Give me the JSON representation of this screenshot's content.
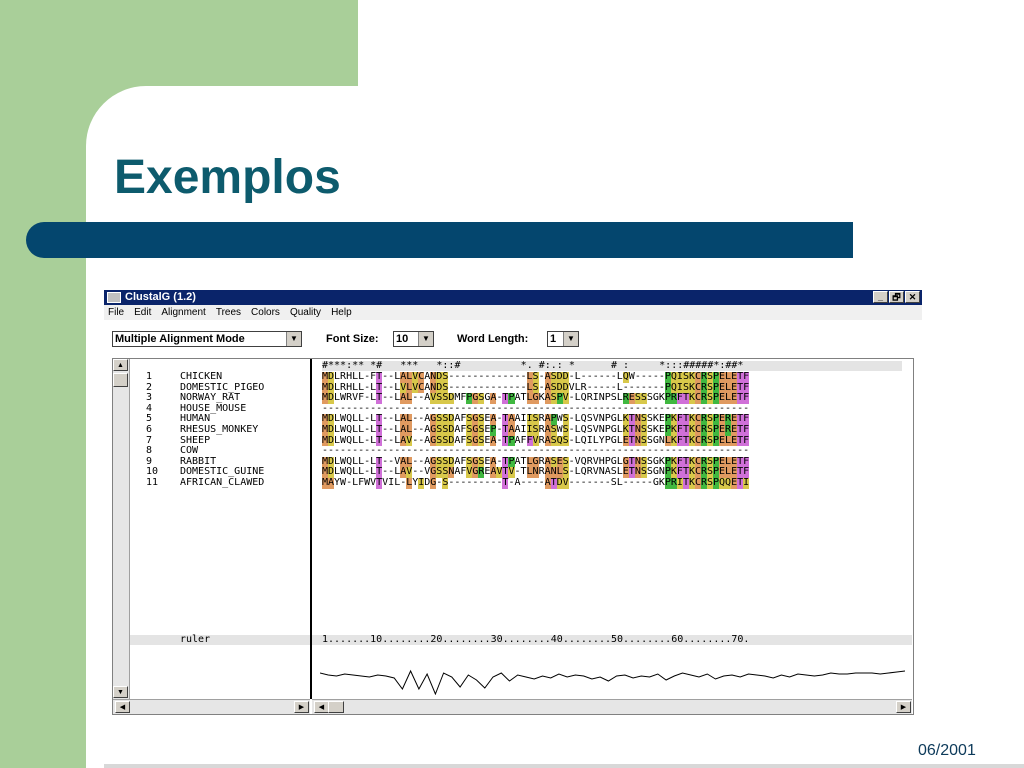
{
  "slide": {
    "title": "Exemplos",
    "footer": "06/2001",
    "colors": {
      "accent_green": "#a9cf99",
      "title_color": "#0d5b6d",
      "bar_color": "#04466e"
    }
  },
  "window": {
    "title": "ClustalG (1.2)",
    "controls": [
      "_",
      "🗗",
      "✕"
    ]
  },
  "menu": [
    "File",
    "Edit",
    "Alignment",
    "Trees",
    "Colors",
    "Quality",
    "Help"
  ],
  "toolbar": {
    "mode_value": "Multiple Alignment Mode",
    "font_size_label": "Font Size:",
    "font_size_value": "10",
    "word_length_label": "Word Length:",
    "word_length_value": "1"
  },
  "sequences": [
    {
      "num": "1",
      "name": "CHICKEN",
      "seq": "MDLRHLL-FT--LALVCANDS-------------LS-ASDD-L------LQW-----PQISKCRSPELETF"
    },
    {
      "num": "2",
      "name": "DOMESTIC_PIGEO",
      "seq": "MDLRHLL-LT--LVLVCANDS-------------LS-ASDDVLR-----L-------PQISKCRSPELETF"
    },
    {
      "num": "3",
      "name": "NORWAY_RAT",
      "seq": "MDLWRVF-LT--LAL--AVSSDMFPGSGA-TPATLGKASPV-LQRINPSLRESSSGKPRFTKCRSPELETF"
    },
    {
      "num": "4",
      "name": "HOUSE_MOUSE",
      "seq": "-----------------------------------------------------------------------"
    },
    {
      "num": "5",
      "name": "HUMAN",
      "seq": "MDLWQLL-LT--LAL--AGSSDAFSGSEA-TAAIISRAPWS-LQSVNPGLKTNSSKEPKFTKCRSPERETF"
    },
    {
      "num": "6",
      "name": "RHESUS_MONKEY",
      "seq": "MDLWQLL-LT--LAL--AGSSDAFSGSEP-TAAIISRASWS-LQSVNPGLKTNSSKEPKFTKCRSPERETF"
    },
    {
      "num": "7",
      "name": "SHEEP",
      "seq": "MDLWQLL-LT--LAV--AGSSDAFSGSEA-TPAFFVRASQS-LQILYPGLETNSSGNLKFTKCRSPELETF"
    },
    {
      "num": "8",
      "name": "COW",
      "seq": "-----------------------------------------------------------------------"
    },
    {
      "num": "9",
      "name": "RABBIT",
      "seq": "MDLWQLL-LT--VAL--AGSSDAFSGSEA-TPATLGRASES-VQRVHPGLGTNSSGKPKFTKCRSPELETF"
    },
    {
      "num": "10",
      "name": "DOMESTIC_GUINE",
      "seq": "MDLWQLL-LT--LAV--VGSSNAFVGREAVTV-TLNRANLS-LQRVNASLETNSSGNPKFTKCRSPELETF"
    },
    {
      "num": "11",
      "name": "AFRICAN_CLAWED",
      "seq": "MAYW-LFWVTVIL-LYIDG-S---------T-A----ATDV-------SL-----GKPRITKCRSPQQETI"
    }
  ],
  "consensus": "#***:** *#   ***   *::#          *. #:.: *      # :     *:::#####*:##*",
  "ruler": {
    "label": "ruler",
    "scale": "1.......10........20........30........40........50........60........70."
  },
  "quality_curve": [
    8,
    10,
    11,
    9,
    10,
    11,
    12,
    10,
    11,
    13,
    24,
    6,
    24,
    9,
    29,
    8,
    12,
    22,
    10,
    15,
    23,
    12,
    8,
    16,
    10,
    12,
    14,
    11,
    13,
    9,
    12,
    10,
    11,
    14,
    12,
    16,
    11,
    10,
    13,
    11,
    12,
    9,
    15,
    11,
    8,
    10,
    12,
    9,
    14,
    11,
    10,
    12,
    9,
    10,
    11,
    13,
    10,
    12,
    9,
    10,
    11,
    10,
    8,
    9,
    9,
    8,
    8,
    8,
    9,
    8,
    7,
    6
  ]
}
